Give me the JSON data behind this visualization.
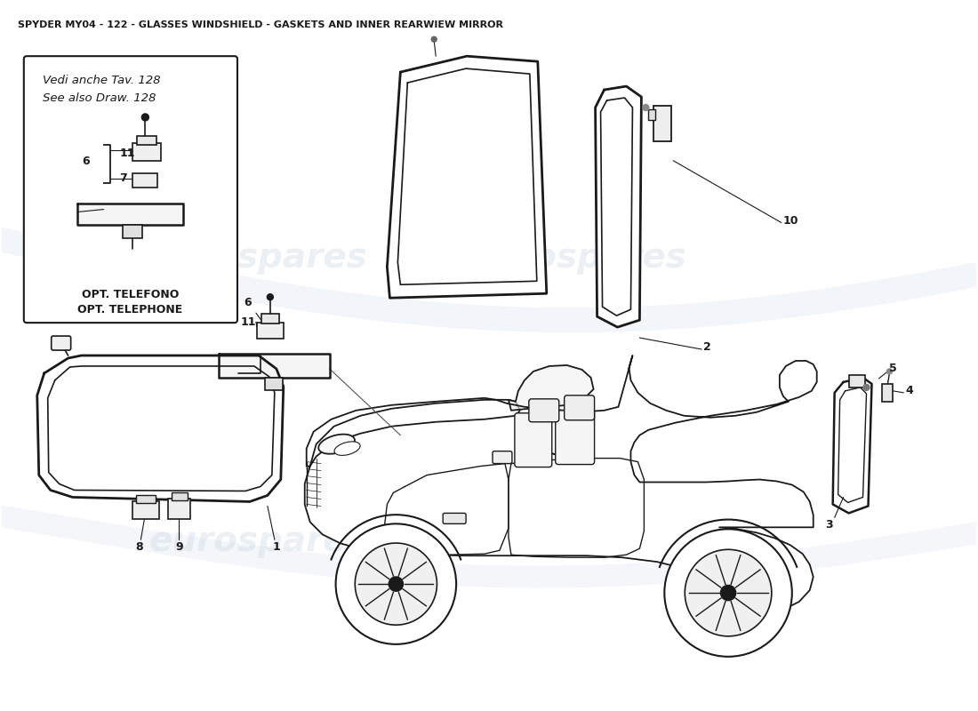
{
  "title": "SPYDER MY04 - 122 - GLASSES WINDSHIELD - GASKETS AND INNER REARWIEW MIRROR",
  "background_color": "#ffffff",
  "watermark_text": "eurospares",
  "line_color": "#1a1a1a",
  "box_note_text_1": "Vedi anche Tav. 128",
  "box_note_text_2": "See also Draw. 128",
  "box_note_bold_1": "OPT. TELEFONO",
  "box_note_bold_2": "OPT. TELEPHONE",
  "figsize": [
    11.0,
    8.0
  ],
  "dpi": 100
}
